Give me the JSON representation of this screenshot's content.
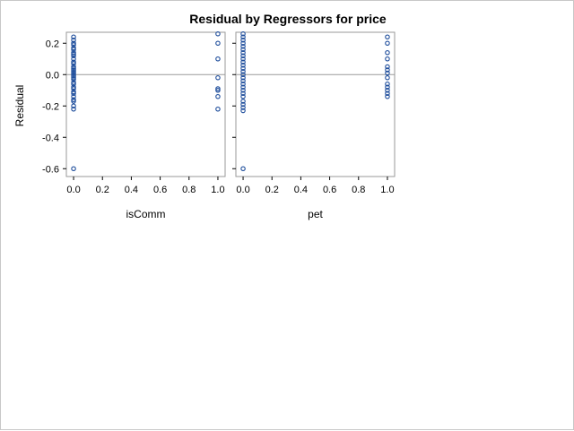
{
  "chart_data": {
    "type": "scatter",
    "title": "Residual by Regressors for price",
    "ylabel": "Residual",
    "ylim": [
      -0.65,
      0.27
    ],
    "yticks": [
      -0.6,
      -0.4,
      -0.2,
      0.0,
      0.2
    ],
    "reference_line": 0.0,
    "marker": {
      "shape": "circle",
      "filled": false,
      "color": "#1f4e9c"
    },
    "panels": [
      {
        "xlabel": "isComm",
        "xlim": [
          -0.05,
          1.05
        ],
        "xticks": [
          0.0,
          0.2,
          0.4,
          0.6,
          0.8,
          1.0
        ],
        "points": [
          [
            0,
            0.24
          ],
          [
            0,
            0.22
          ],
          [
            0,
            0.2
          ],
          [
            0,
            0.19
          ],
          [
            0,
            0.17
          ],
          [
            0,
            0.16
          ],
          [
            0,
            0.14
          ],
          [
            0,
            0.13
          ],
          [
            0,
            0.12
          ],
          [
            0,
            0.1
          ],
          [
            0,
            0.08
          ],
          [
            0,
            0.07
          ],
          [
            0,
            0.05
          ],
          [
            0,
            0.04
          ],
          [
            0,
            0.03
          ],
          [
            0,
            0.02
          ],
          [
            0,
            0.01
          ],
          [
            0,
            0.0
          ],
          [
            0,
            -0.01
          ],
          [
            0,
            -0.02
          ],
          [
            0,
            -0.03
          ],
          [
            0,
            -0.05
          ],
          [
            0,
            -0.06
          ],
          [
            0,
            -0.08
          ],
          [
            0,
            -0.09
          ],
          [
            0,
            -0.11
          ],
          [
            0,
            -0.12
          ],
          [
            0,
            -0.14
          ],
          [
            0,
            -0.16
          ],
          [
            0,
            -0.17
          ],
          [
            0,
            -0.2
          ],
          [
            0,
            -0.22
          ],
          [
            0,
            -0.6
          ],
          [
            1,
            0.26
          ],
          [
            1,
            0.2
          ],
          [
            1,
            0.1
          ],
          [
            1,
            -0.02
          ],
          [
            1,
            -0.09
          ],
          [
            1,
            -0.1
          ],
          [
            1,
            -0.14
          ],
          [
            1,
            -0.22
          ]
        ]
      },
      {
        "xlabel": "pet",
        "xlim": [
          -0.05,
          1.05
        ],
        "xticks": [
          0.0,
          0.2,
          0.4,
          0.6,
          0.8,
          1.0
        ],
        "points": [
          [
            0,
            0.26
          ],
          [
            0,
            0.24
          ],
          [
            0,
            0.22
          ],
          [
            0,
            0.2
          ],
          [
            0,
            0.18
          ],
          [
            0,
            0.16
          ],
          [
            0,
            0.14
          ],
          [
            0,
            0.12
          ],
          [
            0,
            0.1
          ],
          [
            0,
            0.08
          ],
          [
            0,
            0.06
          ],
          [
            0,
            0.04
          ],
          [
            0,
            0.02
          ],
          [
            0,
            0.0
          ],
          [
            0,
            -0.02
          ],
          [
            0,
            -0.04
          ],
          [
            0,
            -0.06
          ],
          [
            0,
            -0.08
          ],
          [
            0,
            -0.1
          ],
          [
            0,
            -0.12
          ],
          [
            0,
            -0.14
          ],
          [
            0,
            -0.17
          ],
          [
            0,
            -0.19
          ],
          [
            0,
            -0.21
          ],
          [
            0,
            -0.23
          ],
          [
            0,
            -0.6
          ],
          [
            1,
            0.24
          ],
          [
            1,
            0.2
          ],
          [
            1,
            0.14
          ],
          [
            1,
            0.1
          ],
          [
            1,
            0.05
          ],
          [
            1,
            0.03
          ],
          [
            1,
            0.01
          ],
          [
            1,
            -0.02
          ],
          [
            1,
            -0.06
          ],
          [
            1,
            -0.08
          ],
          [
            1,
            -0.1
          ],
          [
            1,
            -0.12
          ],
          [
            1,
            -0.14
          ]
        ]
      }
    ]
  }
}
